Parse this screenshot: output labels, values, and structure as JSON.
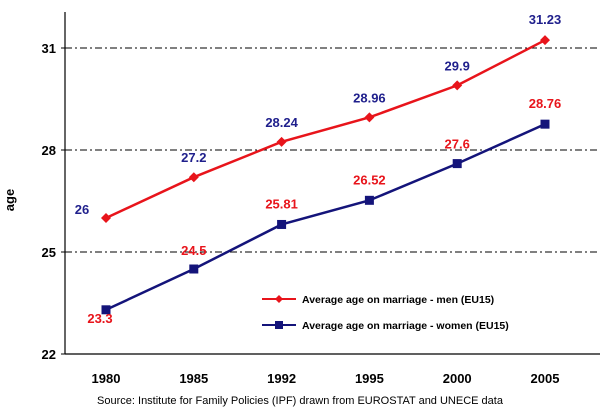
{
  "chart_data": {
    "type": "line",
    "categories": [
      "1980",
      "1985",
      "1992",
      "1995",
      "2000",
      "2005"
    ],
    "ylabel": "age",
    "ylim": [
      22,
      32
    ],
    "yticks": [
      "22",
      "25",
      "28",
      "31"
    ],
    "grid": "dash-dot horizontal lines at 25, 28, 31",
    "legend_position": "lower-right",
    "series": [
      {
        "name": "Average age on marriage - men (EU15)",
        "values": [
          26,
          27.2,
          28.24,
          28.96,
          29.9,
          31.23
        ],
        "labels": [
          "26",
          "27.2",
          "28.24",
          "28.96",
          "29.9",
          "31.23"
        ],
        "line_color": "#e8141b",
        "label_color": "#1f1f8c",
        "marker": "diamond"
      },
      {
        "name": "Average age on marriage - women (EU15)",
        "values": [
          23.3,
          24.5,
          25.81,
          26.52,
          27.6,
          28.76
        ],
        "labels": [
          "23.3",
          "24.5",
          "25.81",
          "26.52",
          "27.6",
          "28.76"
        ],
        "line_color": "#14147a",
        "label_color": "#e8141b",
        "marker": "square"
      }
    ],
    "source": "Source: Institute for Family Policies (IPF) drawn from EUROSTAT and UNECE data"
  }
}
